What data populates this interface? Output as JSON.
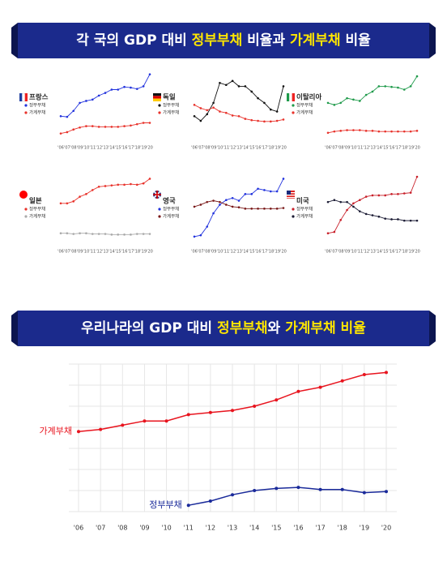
{
  "sections": [
    {
      "title": [
        {
          "text": "각 국의 GDP 대비 ",
          "color": "#ffffff"
        },
        {
          "text": "정부부채",
          "color": "#ffe600"
        },
        {
          "text": " 비율과 ",
          "color": "#ffffff"
        },
        {
          "text": "가계부채",
          "color": "#ffe600"
        },
        {
          "text": " 비율",
          "color": "#ffffff"
        }
      ]
    },
    {
      "title": [
        {
          "text": "우리나라의 GDP 대비 ",
          "color": "#ffffff"
        },
        {
          "text": "정부부채",
          "color": "#ffe600"
        },
        {
          "text": "와 ",
          "color": "#ffffff"
        },
        {
          "text": "가계부채 비율",
          "color": "#ffe600"
        }
      ]
    }
  ],
  "chart_data": [
    {
      "type": "line",
      "country": "프랑스",
      "categories": [
        "'06",
        "'07",
        "'08",
        "'09",
        "'10",
        "'11",
        "'12",
        "'13",
        "'14",
        "'15",
        "'16",
        "'17",
        "'18",
        "'19",
        "'20"
      ],
      "ylim": [
        0,
        100
      ],
      "series": [
        {
          "name": "정부부채",
          "color": "#2233dd",
          "values": [
            35,
            34,
            43,
            55,
            58,
            60,
            66,
            70,
            75,
            75,
            79,
            78,
            76,
            80,
            98
          ]
        },
        {
          "name": "가계부채",
          "color": "#e8322b",
          "values": [
            9,
            11,
            15,
            18,
            20,
            20,
            19,
            19,
            19,
            19,
            20,
            21,
            23,
            25,
            25
          ]
        }
      ]
    },
    {
      "type": "line",
      "country": "독일",
      "categories": [
        "'06",
        "'07",
        "'08",
        "'09",
        "'10",
        "'11",
        "'12",
        "'13",
        "'14",
        "'15",
        "'16",
        "'17",
        "'18",
        "'19",
        "'20"
      ],
      "ylim": [
        0,
        100
      ],
      "series": [
        {
          "name": "정부부채",
          "color": "#111111",
          "values": [
            35,
            28,
            38,
            55,
            85,
            82,
            88,
            80,
            80,
            72,
            62,
            55,
            45,
            42,
            80
          ]
        },
        {
          "name": "가계부채",
          "color": "#e8322b",
          "values": [
            52,
            47,
            44,
            48,
            42,
            40,
            36,
            35,
            31,
            29,
            28,
            27,
            27,
            28,
            30
          ]
        }
      ]
    },
    {
      "type": "line",
      "country": "이탈리아",
      "categories": [
        "'06",
        "'07",
        "'08",
        "'09",
        "'10",
        "'11",
        "'12",
        "'13",
        "'14",
        "'15",
        "'16",
        "'17",
        "'18",
        "'19",
        "'20"
      ],
      "ylim": [
        0,
        100
      ],
      "series": [
        {
          "name": "정부부채",
          "color": "#1e9a4a",
          "values": [
            55,
            52,
            55,
            62,
            60,
            58,
            67,
            72,
            80,
            80,
            79,
            78,
            75,
            80,
            95
          ]
        },
        {
          "name": "가계부채",
          "color": "#e8322b",
          "values": [
            10,
            12,
            13,
            14,
            14,
            14,
            13,
            13,
            12,
            12,
            12,
            12,
            12,
            12,
            13
          ]
        }
      ]
    },
    {
      "type": "line",
      "country": "일본",
      "categories": [
        "'06",
        "'07",
        "'08",
        "'09",
        "'10",
        "'11",
        "'12",
        "'13",
        "'14",
        "'15",
        "'16",
        "'17",
        "'18",
        "'19",
        "'20"
      ],
      "ylim": [
        0,
        100
      ],
      "series": [
        {
          "name": "정부부채",
          "color": "#e8322b",
          "values": [
            60,
            60,
            63,
            70,
            74,
            80,
            85,
            86,
            87,
            88,
            88,
            89,
            88,
            90,
            97
          ]
        },
        {
          "name": "가계부채",
          "color": "#aaaaaa",
          "values": [
            15,
            15,
            14,
            15,
            15,
            14,
            14,
            14,
            13,
            13,
            13,
            13,
            14,
            14,
            14
          ]
        }
      ]
    },
    {
      "type": "line",
      "country": "영국",
      "categories": [
        "'06",
        "'07",
        "'08",
        "'09",
        "'10",
        "'11",
        "'12",
        "'13",
        "'14",
        "'15",
        "'16",
        "'17",
        "'18",
        "'19",
        "'20"
      ],
      "ylim": [
        0,
        100
      ],
      "series": [
        {
          "name": "정부부채",
          "color": "#2233dd",
          "values": [
            10,
            12,
            25,
            45,
            58,
            65,
            68,
            64,
            74,
            74,
            82,
            80,
            78,
            78,
            97
          ]
        },
        {
          "name": "가계부채",
          "color": "#7a1a1a",
          "values": [
            55,
            58,
            62,
            64,
            62,
            58,
            55,
            54,
            52,
            52,
            52,
            52,
            52,
            52,
            53
          ]
        }
      ]
    },
    {
      "type": "line",
      "country": "미국",
      "categories": [
        "'06",
        "'07",
        "'08",
        "'09",
        "'10",
        "'11",
        "'12",
        "'13",
        "'14",
        "'15",
        "'16",
        "'17",
        "'18",
        "'19",
        "'20"
      ],
      "ylim": [
        0,
        100
      ],
      "series": [
        {
          "name": "정부부채",
          "color": "#c8202a",
          "values": [
            15,
            17,
            35,
            50,
            60,
            65,
            70,
            72,
            72,
            72,
            74,
            74,
            75,
            76,
            100
          ]
        },
        {
          "name": "가계부채",
          "color": "#1a1a33",
          "values": [
            62,
            65,
            62,
            62,
            55,
            48,
            44,
            42,
            40,
            37,
            36,
            36,
            34,
            34,
            34
          ]
        }
      ]
    },
    {
      "type": "line",
      "categories": [
        "'06",
        "'07",
        "'08",
        "'09",
        "'10",
        "'11",
        "'12",
        "'13",
        "'14",
        "'15",
        "'16",
        "'17",
        "'18",
        "'19",
        "'20"
      ],
      "ylim": [
        0,
        8
      ],
      "yticks": [
        1,
        2,
        3,
        4,
        5,
        6,
        7,
        8
      ],
      "grid": true,
      "series": [
        {
          "name": "가계부채",
          "color": "#e8141e",
          "values": [
            4.8,
            4.9,
            5.1,
            5.3,
            5.3,
            5.6,
            5.7,
            5.8,
            6.0,
            6.3,
            6.7,
            6.9,
            7.2,
            7.5,
            7.6
          ]
        },
        {
          "name": "정부부채",
          "color": "#1a2a9a",
          "values": [
            null,
            null,
            null,
            null,
            null,
            1.3,
            1.5,
            1.8,
            2.0,
            2.1,
            2.15,
            2.05,
            2.05,
            1.9,
            1.95
          ]
        }
      ]
    }
  ]
}
